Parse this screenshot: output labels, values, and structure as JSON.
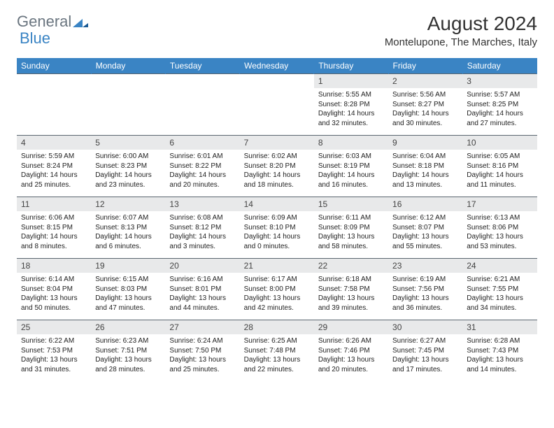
{
  "brand": {
    "word1": "General",
    "word2": "Blue"
  },
  "title": "August 2024",
  "location": "Montelupone, The Marches, Italy",
  "colors": {
    "header_bg": "#3a84c4",
    "header_text": "#ffffff",
    "daynum_bg": "#e8e9ea",
    "border": "#5a6570",
    "logo_gray": "#6b7680",
    "logo_blue": "#3a84c4"
  },
  "weekdays": [
    "Sunday",
    "Monday",
    "Tuesday",
    "Wednesday",
    "Thursday",
    "Friday",
    "Saturday"
  ],
  "weeks": [
    [
      {
        "n": "",
        "sr": "",
        "ss": "",
        "dl": ""
      },
      {
        "n": "",
        "sr": "",
        "ss": "",
        "dl": ""
      },
      {
        "n": "",
        "sr": "",
        "ss": "",
        "dl": ""
      },
      {
        "n": "",
        "sr": "",
        "ss": "",
        "dl": ""
      },
      {
        "n": "1",
        "sr": "Sunrise: 5:55 AM",
        "ss": "Sunset: 8:28 PM",
        "dl": "Daylight: 14 hours and 32 minutes."
      },
      {
        "n": "2",
        "sr": "Sunrise: 5:56 AM",
        "ss": "Sunset: 8:27 PM",
        "dl": "Daylight: 14 hours and 30 minutes."
      },
      {
        "n": "3",
        "sr": "Sunrise: 5:57 AM",
        "ss": "Sunset: 8:25 PM",
        "dl": "Daylight: 14 hours and 27 minutes."
      }
    ],
    [
      {
        "n": "4",
        "sr": "Sunrise: 5:59 AM",
        "ss": "Sunset: 8:24 PM",
        "dl": "Daylight: 14 hours and 25 minutes."
      },
      {
        "n": "5",
        "sr": "Sunrise: 6:00 AM",
        "ss": "Sunset: 8:23 PM",
        "dl": "Daylight: 14 hours and 23 minutes."
      },
      {
        "n": "6",
        "sr": "Sunrise: 6:01 AM",
        "ss": "Sunset: 8:22 PM",
        "dl": "Daylight: 14 hours and 20 minutes."
      },
      {
        "n": "7",
        "sr": "Sunrise: 6:02 AM",
        "ss": "Sunset: 8:20 PM",
        "dl": "Daylight: 14 hours and 18 minutes."
      },
      {
        "n": "8",
        "sr": "Sunrise: 6:03 AM",
        "ss": "Sunset: 8:19 PM",
        "dl": "Daylight: 14 hours and 16 minutes."
      },
      {
        "n": "9",
        "sr": "Sunrise: 6:04 AM",
        "ss": "Sunset: 8:18 PM",
        "dl": "Daylight: 14 hours and 13 minutes."
      },
      {
        "n": "10",
        "sr": "Sunrise: 6:05 AM",
        "ss": "Sunset: 8:16 PM",
        "dl": "Daylight: 14 hours and 11 minutes."
      }
    ],
    [
      {
        "n": "11",
        "sr": "Sunrise: 6:06 AM",
        "ss": "Sunset: 8:15 PM",
        "dl": "Daylight: 14 hours and 8 minutes."
      },
      {
        "n": "12",
        "sr": "Sunrise: 6:07 AM",
        "ss": "Sunset: 8:13 PM",
        "dl": "Daylight: 14 hours and 6 minutes."
      },
      {
        "n": "13",
        "sr": "Sunrise: 6:08 AM",
        "ss": "Sunset: 8:12 PM",
        "dl": "Daylight: 14 hours and 3 minutes."
      },
      {
        "n": "14",
        "sr": "Sunrise: 6:09 AM",
        "ss": "Sunset: 8:10 PM",
        "dl": "Daylight: 14 hours and 0 minutes."
      },
      {
        "n": "15",
        "sr": "Sunrise: 6:11 AM",
        "ss": "Sunset: 8:09 PM",
        "dl": "Daylight: 13 hours and 58 minutes."
      },
      {
        "n": "16",
        "sr": "Sunrise: 6:12 AM",
        "ss": "Sunset: 8:07 PM",
        "dl": "Daylight: 13 hours and 55 minutes."
      },
      {
        "n": "17",
        "sr": "Sunrise: 6:13 AM",
        "ss": "Sunset: 8:06 PM",
        "dl": "Daylight: 13 hours and 53 minutes."
      }
    ],
    [
      {
        "n": "18",
        "sr": "Sunrise: 6:14 AM",
        "ss": "Sunset: 8:04 PM",
        "dl": "Daylight: 13 hours and 50 minutes."
      },
      {
        "n": "19",
        "sr": "Sunrise: 6:15 AM",
        "ss": "Sunset: 8:03 PM",
        "dl": "Daylight: 13 hours and 47 minutes."
      },
      {
        "n": "20",
        "sr": "Sunrise: 6:16 AM",
        "ss": "Sunset: 8:01 PM",
        "dl": "Daylight: 13 hours and 44 minutes."
      },
      {
        "n": "21",
        "sr": "Sunrise: 6:17 AM",
        "ss": "Sunset: 8:00 PM",
        "dl": "Daylight: 13 hours and 42 minutes."
      },
      {
        "n": "22",
        "sr": "Sunrise: 6:18 AM",
        "ss": "Sunset: 7:58 PM",
        "dl": "Daylight: 13 hours and 39 minutes."
      },
      {
        "n": "23",
        "sr": "Sunrise: 6:19 AM",
        "ss": "Sunset: 7:56 PM",
        "dl": "Daylight: 13 hours and 36 minutes."
      },
      {
        "n": "24",
        "sr": "Sunrise: 6:21 AM",
        "ss": "Sunset: 7:55 PM",
        "dl": "Daylight: 13 hours and 34 minutes."
      }
    ],
    [
      {
        "n": "25",
        "sr": "Sunrise: 6:22 AM",
        "ss": "Sunset: 7:53 PM",
        "dl": "Daylight: 13 hours and 31 minutes."
      },
      {
        "n": "26",
        "sr": "Sunrise: 6:23 AM",
        "ss": "Sunset: 7:51 PM",
        "dl": "Daylight: 13 hours and 28 minutes."
      },
      {
        "n": "27",
        "sr": "Sunrise: 6:24 AM",
        "ss": "Sunset: 7:50 PM",
        "dl": "Daylight: 13 hours and 25 minutes."
      },
      {
        "n": "28",
        "sr": "Sunrise: 6:25 AM",
        "ss": "Sunset: 7:48 PM",
        "dl": "Daylight: 13 hours and 22 minutes."
      },
      {
        "n": "29",
        "sr": "Sunrise: 6:26 AM",
        "ss": "Sunset: 7:46 PM",
        "dl": "Daylight: 13 hours and 20 minutes."
      },
      {
        "n": "30",
        "sr": "Sunrise: 6:27 AM",
        "ss": "Sunset: 7:45 PM",
        "dl": "Daylight: 13 hours and 17 minutes."
      },
      {
        "n": "31",
        "sr": "Sunrise: 6:28 AM",
        "ss": "Sunset: 7:43 PM",
        "dl": "Daylight: 13 hours and 14 minutes."
      }
    ]
  ]
}
